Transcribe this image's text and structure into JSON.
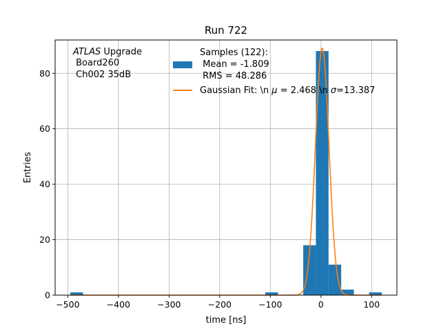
{
  "chart_data": {
    "type": "bar",
    "title": "Run 722",
    "xlabel": "time [ns]",
    "ylabel": "Entries",
    "xlim": [
      -525,
      150
    ],
    "ylim": [
      0,
      92
    ],
    "grid": true,
    "x_ticks": [
      -500,
      -400,
      -300,
      -200,
      -100,
      0,
      100
    ],
    "x_tick_labels": [
      "−500",
      "−400",
      "−300",
      "−200",
      "−100",
      "0",
      "100"
    ],
    "y_ticks": [
      0,
      20,
      40,
      60,
      80
    ],
    "y_tick_labels": [
      "0",
      "20",
      "40",
      "60",
      "80"
    ],
    "annotation": {
      "line1_italic": "ATLAS",
      "line1_rest": " Upgrade",
      "line2": " Board260",
      "line3": " Ch002 35dB"
    },
    "histogram": {
      "name_line1": "Samples (122):",
      "name_line2": " Mean = -1.809",
      "name_line3": " RMS = 48.286",
      "color": "#1f77b4",
      "bins": [
        {
          "x0": -495,
          "x1": -470,
          "count": 1
        },
        {
          "x0": -110,
          "x1": -85,
          "count": 1
        },
        {
          "x0": -35,
          "x1": -10,
          "count": 18
        },
        {
          "x0": -10,
          "x1": 15,
          "count": 88
        },
        {
          "x0": 15,
          "x1": 40,
          "count": 11
        },
        {
          "x0": 40,
          "x1": 65,
          "count": 2
        },
        {
          "x0": 95,
          "x1": 120,
          "count": 1
        }
      ]
    },
    "fit": {
      "name_prefix": "Gaussian Fit: \\n ",
      "mu_symbol": "μ",
      "mu_text": " = 2.468 \\n ",
      "sigma_symbol": "σ",
      "sigma_text": "=13.387",
      "mu": 2.468,
      "sigma": 13.387,
      "amplitude": 89,
      "color": "#ff7f0e",
      "x_range": [
        -495,
        120
      ]
    },
    "legend_position": "upper-center"
  }
}
